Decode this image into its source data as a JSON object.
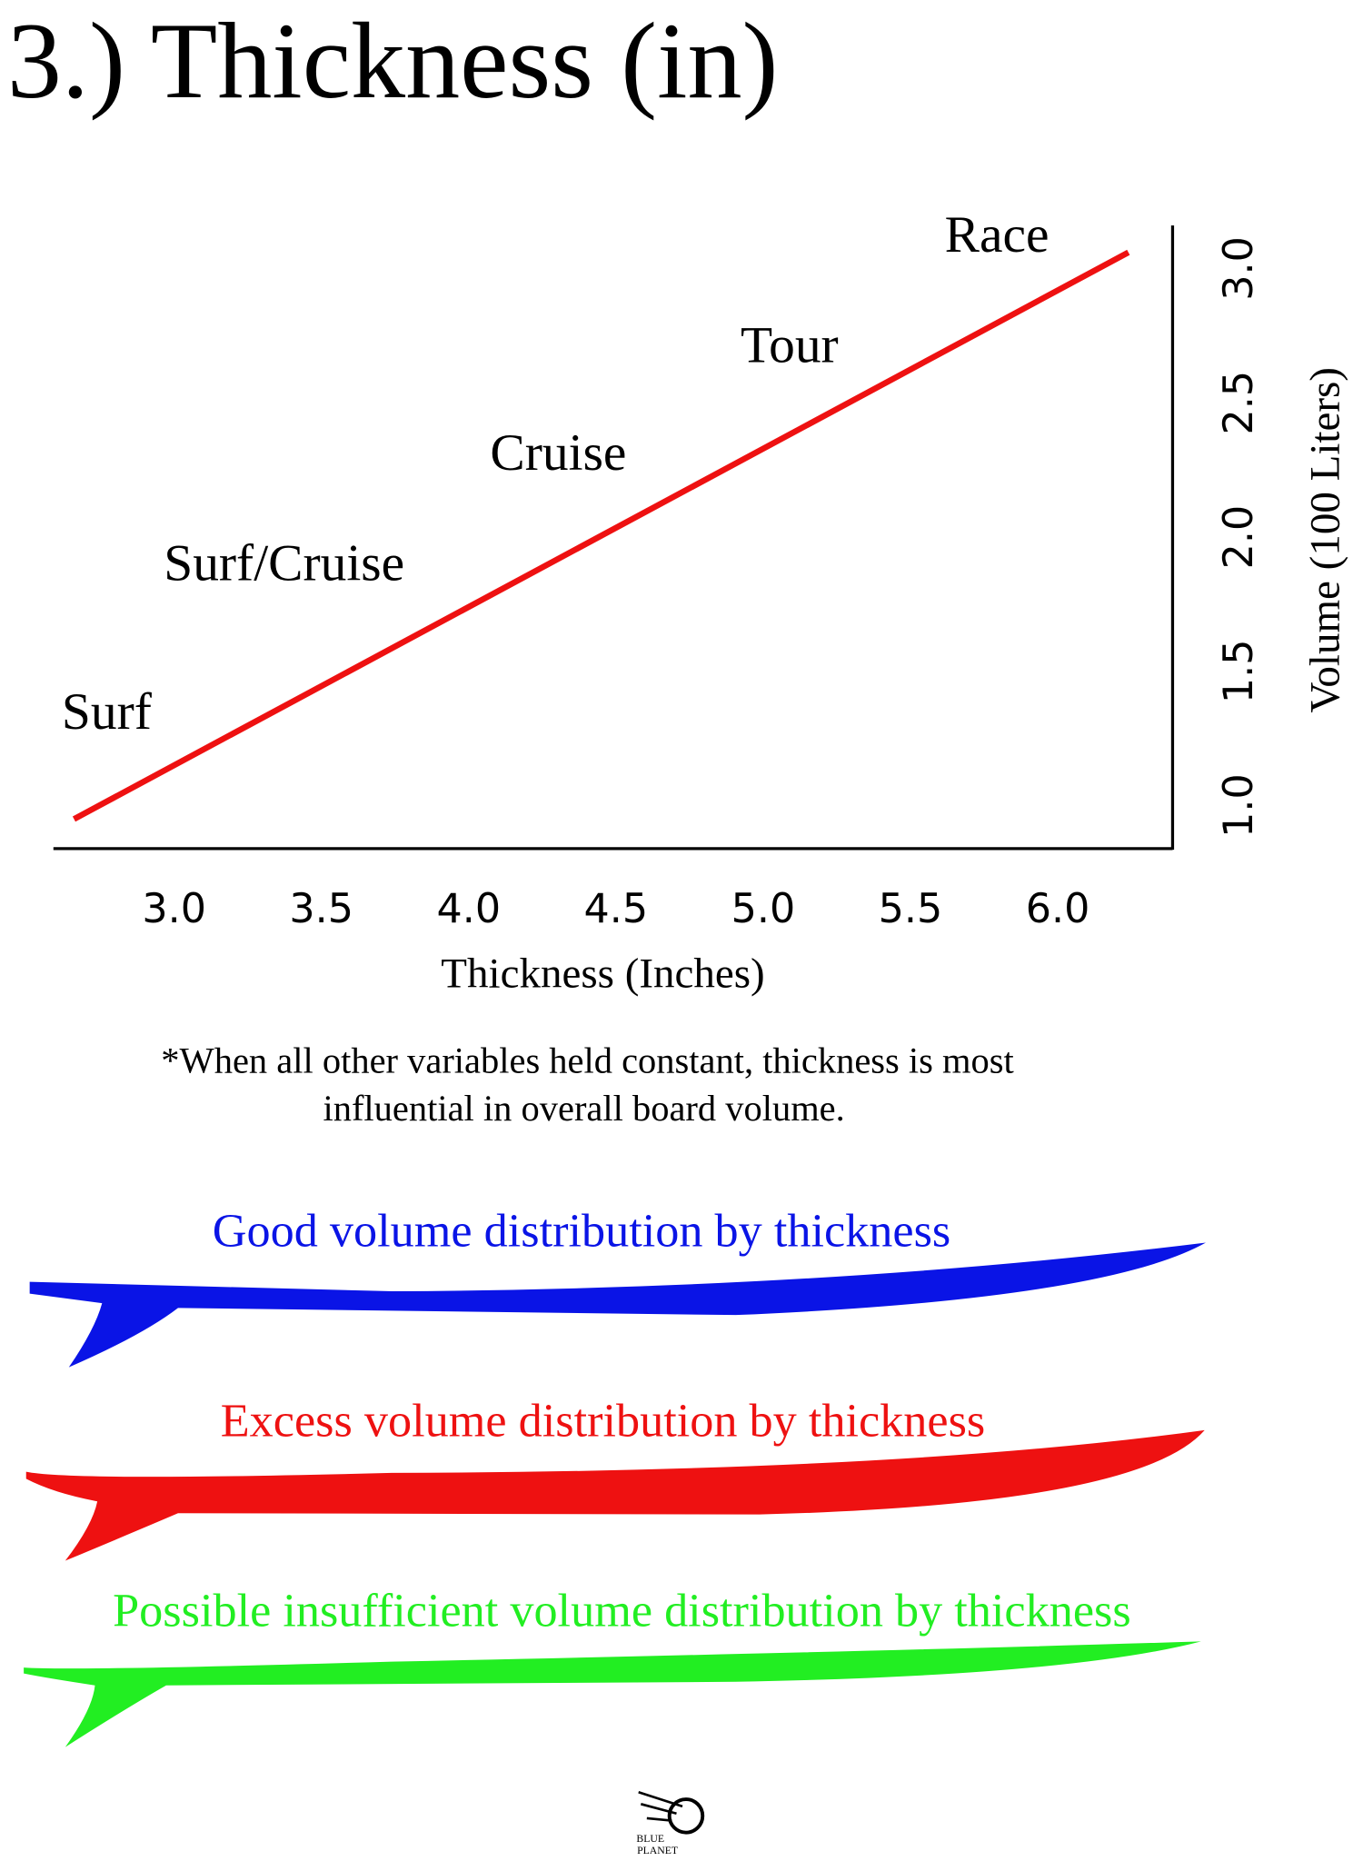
{
  "chart_data": {
    "type": "line",
    "title": "3.) Thickness (in)",
    "x_label": "Thickness (Inches)",
    "y_label": "Volume (100 Liters)",
    "xlim": [
      2.59,
      6.39
    ],
    "ylim": [
      0.84,
      3.16
    ],
    "xticks": [
      {
        "value": 3,
        "label": "3.0"
      },
      3.5,
      {
        "value": 4,
        "label": "4.0"
      },
      4.5,
      {
        "value": 5,
        "label": "5.0"
      },
      5.5,
      {
        "value": 6,
        "label": "6.0"
      }
    ],
    "yticks": [
      {
        "value": 1,
        "label": "1.0"
      },
      1.5,
      {
        "value": 2,
        "label": "2.0"
      },
      2.5,
      {
        "value": 3,
        "label": "3.0"
      }
    ],
    "x": [
      2.66,
      6.24
    ],
    "series": [
      {
        "color": "#ee1111",
        "values": [
          0.95,
          3.06
        ]
      }
    ],
    "annotations": [
      "Surf",
      "Surf/Cruise",
      "Cruise",
      "Tour",
      "Race"
    ],
    "note": [
      "*When all other variables held constant, thickness is most",
      "influential in overall board volume."
    ]
  },
  "boards": [
    {
      "caption": "Good volume distribution by thickness",
      "color": "#0a14e6"
    },
    {
      "caption": "Excess volume distribution by thickness",
      "color": "#ee1111"
    },
    {
      "caption": "Possible insufficient volume distribution by thickness",
      "color": "#22ee22"
    }
  ],
  "logo": [
    "BLUE",
    "PLANET"
  ]
}
